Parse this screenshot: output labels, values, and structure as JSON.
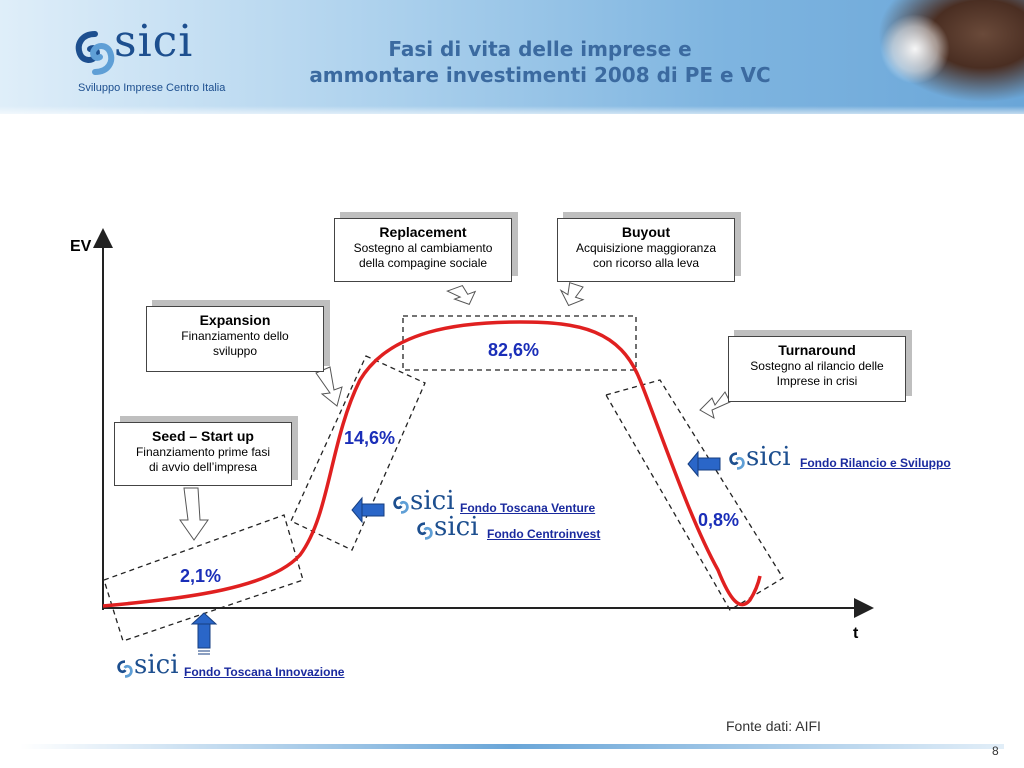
{
  "header": {
    "logo": {
      "word": "sici",
      "tagline": "Sviluppo Imprese Centro Italia"
    },
    "title_line1": "Fasi di vita delle imprese e",
    "title_line2": "ammontare investimenti 2008 di PE e VC"
  },
  "axes": {
    "y_label": "EV",
    "x_label": "t"
  },
  "phases": {
    "replacement": {
      "title": "Replacement",
      "desc1": "Sostegno al cambiamento",
      "desc2": "della compagine sociale"
    },
    "buyout": {
      "title": "Buyout",
      "desc1": "Acquisizione maggioranza",
      "desc2": "con ricorso alla leva"
    },
    "expansion": {
      "title": "Expansion",
      "desc1": "Finanziamento dello",
      "desc2": "sviluppo"
    },
    "turnaround": {
      "title": "Turnaround",
      "desc1": "Sostegno al rilancio delle",
      "desc2": "Imprese in crisi"
    },
    "seed": {
      "title": "Seed – Start up",
      "desc1": "Finanziamento prime fasi",
      "desc2": "di avvio dell’impresa"
    }
  },
  "percentages": {
    "seed": "2,1%",
    "expansion": "14,6%",
    "buyout": "82,6%",
    "turnaround": "0,8%"
  },
  "funds": {
    "rilancio": "Fondo Rilancio e Sviluppo",
    "toscana_venture": "Fondo Toscana Venture",
    "centroinvest": "Fondo Centroinvest",
    "toscana_innovazione": "Fondo Toscana Innovazione"
  },
  "colors": {
    "curve": "#e02020",
    "arrow_blue": "#2a66c8",
    "text_blue": "#1a2eb8"
  },
  "footer": {
    "source": "Fonte dati: AIFI",
    "page": "8"
  }
}
